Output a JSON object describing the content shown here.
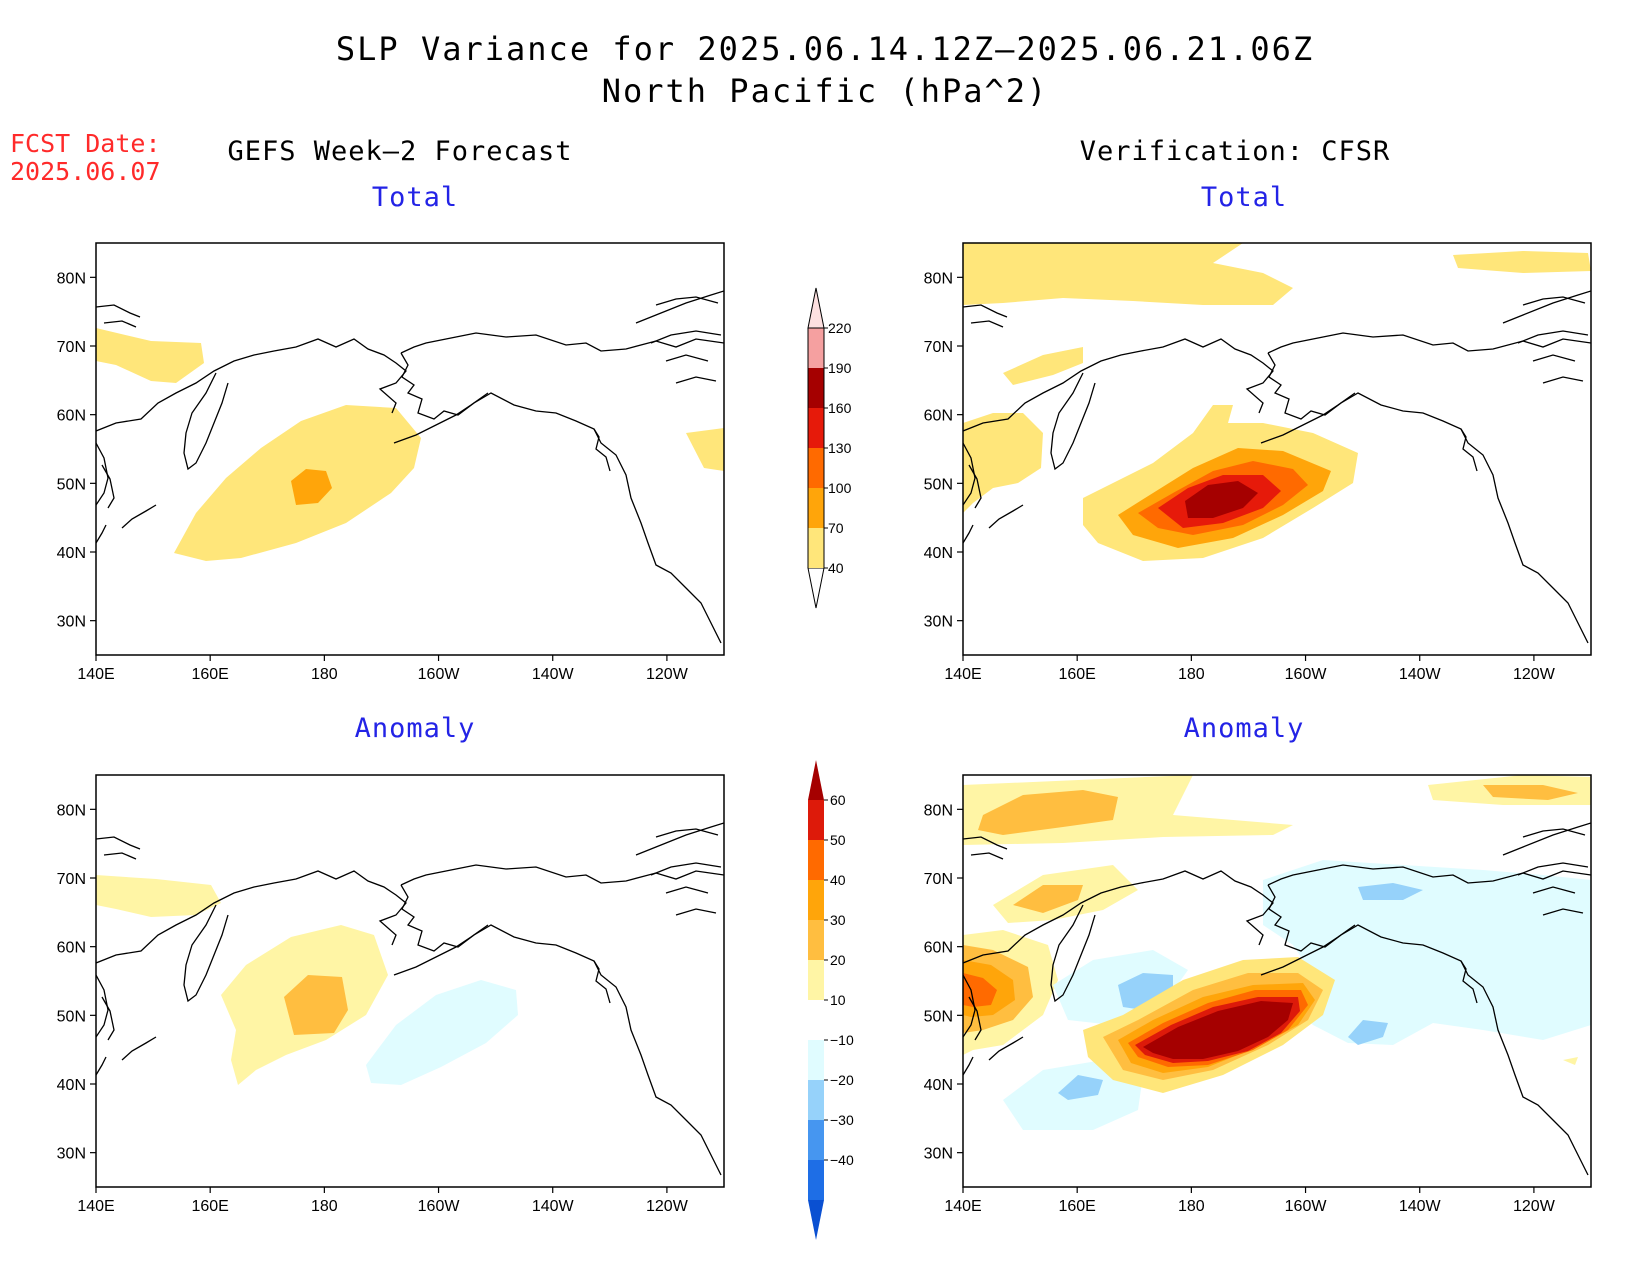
{
  "header": {
    "title_line1": "SLP Variance for 2025.06.14.12Z–2025.06.21.06Z",
    "title_line2": "North Pacific (hPa^2)",
    "fcst_label": "FCST Date:",
    "fcst_date": "2025.06.07"
  },
  "columns": {
    "left": "GEFS Week–2 Forecast",
    "right": "Verification: CFSR"
  },
  "panels": {
    "total_label": "Total",
    "anomaly_label": "Anomaly"
  },
  "axes": {
    "lat_labels": [
      "80N",
      "70N",
      "60N",
      "50N",
      "40N",
      "30N"
    ],
    "lon_labels": [
      "140E",
      "160E",
      "180",
      "160W",
      "140W",
      "120W"
    ]
  },
  "colorbar_total": {
    "levels": [
      "40",
      "70",
      "100",
      "130",
      "160",
      "190",
      "220"
    ],
    "colors": [
      "#ffe67a",
      "#ffa50a",
      "#ff6a00",
      "#e61a0a",
      "#a50000",
      "#f5a0a0",
      "#fde0e0"
    ]
  },
  "colorbar_anomaly": {
    "levels": [
      "60",
      "50",
      "40",
      "30",
      "20",
      "10",
      "−10",
      "−20",
      "−30",
      "−40"
    ],
    "colors_top_to_bottom": [
      "#a50000",
      "#dd1a0a",
      "#ff6a00",
      "#ffa50a",
      "#ffbe40",
      "#fff5a5",
      "#ffffff",
      "#e0fcff",
      "#96d2fa",
      "#4696f0",
      "#1e6ee6",
      "#0a50d2"
    ]
  },
  "colors": {
    "fcst": "#ff2a2a",
    "subtitle": "#2323e6"
  }
}
